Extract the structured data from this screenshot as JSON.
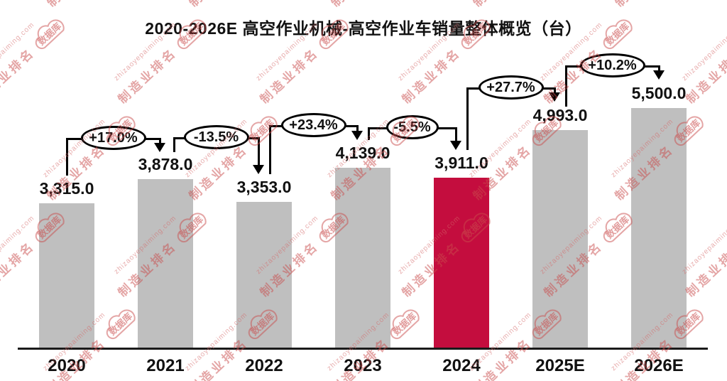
{
  "chart_data": {
    "type": "bar",
    "title": "2020-2026E 高空作业机械-高空作业车销量整体概览（台）",
    "categories": [
      "2020",
      "2021",
      "2022",
      "2023",
      "2024",
      "2025E",
      "2026E"
    ],
    "values": [
      3315.0,
      3878.0,
      3353.0,
      4139.0,
      3911.0,
      4993.0,
      5500.0
    ],
    "value_labels": [
      "3,315.0",
      "3,878.0",
      "3,353.0",
      "4,139.0",
      "3,911.0",
      "4,993.0",
      "5,500.0"
    ],
    "growth_labels": [
      "+17.0%",
      "-13.5%",
      "+23.4%",
      "-5.5%",
      "+27.7%",
      "+10.2%"
    ],
    "ylim": [
      0,
      5500
    ],
    "unit": "台",
    "highlight_index": 4,
    "grid": false,
    "legend": "none",
    "colors": {
      "bar_default": "#BFBFBF",
      "bar_highlight": "#C40D3E",
      "connector": "#000000",
      "text": "#111111"
    }
  },
  "watermark": {
    "url": "zhizaoyepaiming.com",
    "brand": "制造业排名",
    "badge": "数据库"
  }
}
